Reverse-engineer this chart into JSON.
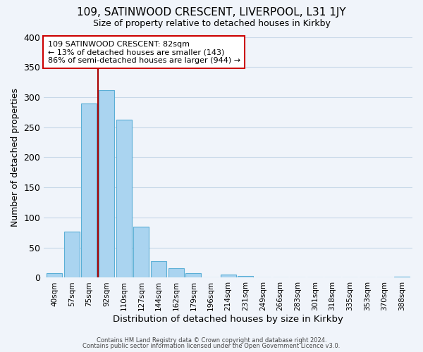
{
  "title": "109, SATINWOOD CRESCENT, LIVERPOOL, L31 1JY",
  "subtitle": "Size of property relative to detached houses in Kirkby",
  "xlabel": "Distribution of detached houses by size in Kirkby",
  "ylabel": "Number of detached properties",
  "bar_labels": [
    "40sqm",
    "57sqm",
    "75sqm",
    "92sqm",
    "110sqm",
    "127sqm",
    "144sqm",
    "162sqm",
    "179sqm",
    "196sqm",
    "214sqm",
    "231sqm",
    "249sqm",
    "266sqm",
    "283sqm",
    "301sqm",
    "318sqm",
    "335sqm",
    "353sqm",
    "370sqm",
    "388sqm"
  ],
  "bar_heights": [
    8,
    77,
    290,
    312,
    262,
    85,
    27,
    16,
    8,
    0,
    5,
    3,
    0,
    0,
    0,
    0,
    0,
    0,
    0,
    0,
    2
  ],
  "bar_color": "#aad4f0",
  "bar_edge_color": "#5bafd6",
  "highlight_color": "#aa0000",
  "ylim": [
    0,
    400
  ],
  "yticks": [
    0,
    50,
    100,
    150,
    200,
    250,
    300,
    350,
    400
  ],
  "annotation_title": "109 SATINWOOD CRESCENT: 82sqm",
  "annotation_line1": "← 13% of detached houses are smaller (143)",
  "annotation_line2": "86% of semi-detached houses are larger (944) →",
  "annotation_box_color": "#ffffff",
  "annotation_box_edge": "#cc0000",
  "footer_line1": "Contains HM Land Registry data © Crown copyright and database right 2024.",
  "footer_line2": "Contains public sector information licensed under the Open Government Licence v3.0.",
  "background_color": "#f0f4fa",
  "grid_color": "#c8d8e8"
}
